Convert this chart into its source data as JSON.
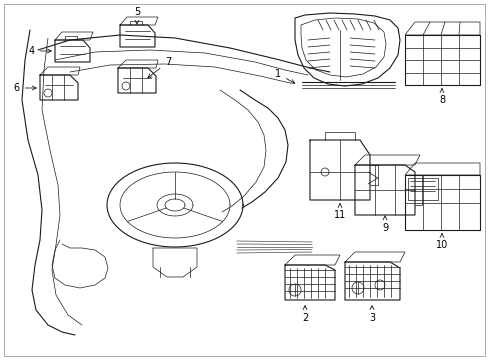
{
  "bg_color": "#ffffff",
  "line_color": "#1a1a1a",
  "text_color": "#000000",
  "border_color": "#999999",
  "fig_width": 4.89,
  "fig_height": 3.6,
  "dpi": 100
}
